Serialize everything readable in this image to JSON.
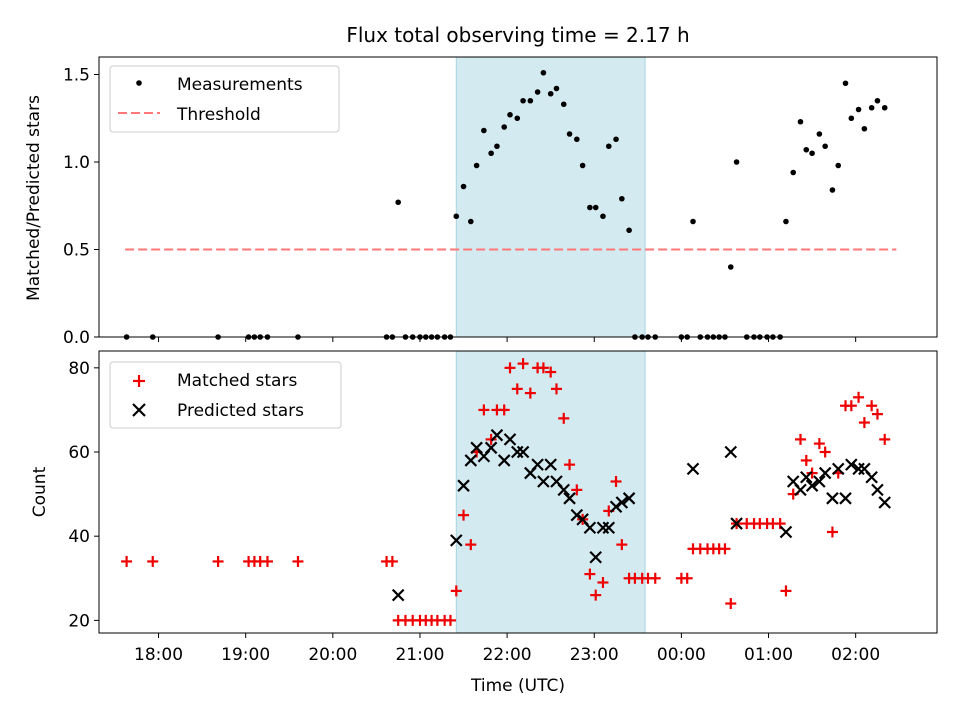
{
  "title": "Flux total observing time = 2.17 h",
  "colors": {
    "measurement": "#000000",
    "threshold": "#ff7777",
    "matched": "#ee0000",
    "predicted": "#000000",
    "shaded_window": "#d4eaf1"
  },
  "chart_data": [
    {
      "type": "scatter",
      "panel": "top",
      "ylabel": "Matched/Predicted stars",
      "ylim": [
        0,
        1.6
      ],
      "yticks": [
        0.0,
        0.5,
        1.0,
        1.5
      ],
      "ytick_labels": [
        "0.0",
        "0.5",
        "1.0",
        "1.5"
      ],
      "xlim": [
        "17:19",
        "02:56"
      ],
      "legend": {
        "position": "top-left",
        "entries": [
          "Measurements",
          "Threshold"
        ]
      },
      "shaded_window": {
        "start": "21:25",
        "end": "23:35"
      },
      "threshold": {
        "name": "Threshold",
        "value": 0.5,
        "x_start": "17:37",
        "x_end": "02:28"
      },
      "series": [
        {
          "name": "Measurements",
          "marker": "dot",
          "points": [
            [
              "17:38",
              0
            ],
            [
              "17:56",
              0
            ],
            [
              "18:41",
              0
            ],
            [
              "19:02",
              0
            ],
            [
              "19:06",
              0
            ],
            [
              "19:10",
              0
            ],
            [
              "19:15",
              0
            ],
            [
              "19:36",
              0
            ],
            [
              "20:37",
              0
            ],
            [
              "20:41",
              0
            ],
            [
              "20:45",
              0.77
            ],
            [
              "20:50",
              0
            ],
            [
              "20:55",
              0
            ],
            [
              "21:00",
              0
            ],
            [
              "21:04",
              0
            ],
            [
              "21:08",
              0
            ],
            [
              "21:12",
              0
            ],
            [
              "21:17",
              0
            ],
            [
              "21:21",
              0
            ],
            [
              "21:25",
              0.69
            ],
            [
              "21:30",
              0.86
            ],
            [
              "21:35",
              0.66
            ],
            [
              "21:39",
              0.98
            ],
            [
              "21:44",
              1.18
            ],
            [
              "21:49",
              1.05
            ],
            [
              "21:53",
              1.09
            ],
            [
              "21:58",
              1.2
            ],
            [
              "22:02",
              1.27
            ],
            [
              "22:07",
              1.25
            ],
            [
              "22:11",
              1.35
            ],
            [
              "22:16",
              1.35
            ],
            [
              "22:21",
              1.4
            ],
            [
              "22:25",
              1.51
            ],
            [
              "22:30",
              1.39
            ],
            [
              "22:34",
              1.42
            ],
            [
              "22:39",
              1.33
            ],
            [
              "22:43",
              1.16
            ],
            [
              "22:48",
              1.13
            ],
            [
              "22:52",
              0.98
            ],
            [
              "22:57",
              0.74
            ],
            [
              "23:01",
              0.74
            ],
            [
              "23:06",
              0.69
            ],
            [
              "23:10",
              1.09
            ],
            [
              "23:15",
              1.13
            ],
            [
              "23:19",
              0.79
            ],
            [
              "23:24",
              0.61
            ],
            [
              "23:28",
              0
            ],
            [
              "23:33",
              0
            ],
            [
              "23:37",
              0
            ],
            [
              "23:42",
              0
            ],
            [
              "00:00",
              0
            ],
            [
              "00:04",
              0
            ],
            [
              "00:08",
              0.66
            ],
            [
              "00:13",
              0
            ],
            [
              "00:18",
              0
            ],
            [
              "00:22",
              0
            ],
            [
              "00:26",
              0
            ],
            [
              "00:30",
              0
            ],
            [
              "00:34",
              0.4
            ],
            [
              "00:38",
              1.0
            ],
            [
              "00:45",
              0
            ],
            [
              "00:50",
              0
            ],
            [
              "00:54",
              0
            ],
            [
              "00:59",
              0
            ],
            [
              "01:03",
              0
            ],
            [
              "01:08",
              0
            ],
            [
              "01:12",
              0.66
            ],
            [
              "01:17",
              0.94
            ],
            [
              "01:22",
              1.23
            ],
            [
              "01:26",
              1.07
            ],
            [
              "01:30",
              1.05
            ],
            [
              "01:35",
              1.16
            ],
            [
              "01:39",
              1.09
            ],
            [
              "01:44",
              0.84
            ],
            [
              "01:48",
              0.98
            ],
            [
              "01:53",
              1.45
            ],
            [
              "01:57",
              1.25
            ],
            [
              "02:02",
              1.3
            ],
            [
              "02:06",
              1.19
            ],
            [
              "02:11",
              1.31
            ],
            [
              "02:15",
              1.35
            ],
            [
              "02:20",
              1.31
            ]
          ]
        }
      ]
    },
    {
      "type": "scatter",
      "panel": "bottom",
      "ylabel": "Count",
      "xlabel": "Time (UTC)",
      "ylim": [
        17,
        84
      ],
      "yticks": [
        20,
        40,
        60,
        80
      ],
      "ytick_labels": [
        "20",
        "40",
        "60",
        "80"
      ],
      "xlim": [
        "17:19",
        "02:56"
      ],
      "xticks": [
        "18:00",
        "19:00",
        "20:00",
        "21:00",
        "22:00",
        "23:00",
        "00:00",
        "01:00",
        "02:00"
      ],
      "xtick_labels": [
        "18:00",
        "19:00",
        "20:00",
        "21:00",
        "22:00",
        "23:00",
        "00:00",
        "01:00",
        "02:00"
      ],
      "legend": {
        "position": "top-left",
        "entries": [
          "Matched stars",
          "Predicted stars"
        ]
      },
      "shaded_window": {
        "start": "21:25",
        "end": "23:35"
      },
      "series": [
        {
          "name": "Matched stars",
          "marker": "plus",
          "points": [
            [
              "17:38",
              34
            ],
            [
              "17:56",
              34
            ],
            [
              "18:41",
              34
            ],
            [
              "19:02",
              34
            ],
            [
              "19:06",
              34
            ],
            [
              "19:10",
              34
            ],
            [
              "19:15",
              34
            ],
            [
              "19:36",
              34
            ],
            [
              "20:37",
              34
            ],
            [
              "20:41",
              34
            ],
            [
              "20:45",
              20
            ],
            [
              "20:50",
              20
            ],
            [
              "20:55",
              20
            ],
            [
              "21:00",
              20
            ],
            [
              "21:04",
              20
            ],
            [
              "21:08",
              20
            ],
            [
              "21:12",
              20
            ],
            [
              "21:17",
              20
            ],
            [
              "21:21",
              20
            ],
            [
              "21:25",
              27
            ],
            [
              "21:30",
              45
            ],
            [
              "21:35",
              38
            ],
            [
              "21:39",
              60
            ],
            [
              "21:44",
              70
            ],
            [
              "21:49",
              63
            ],
            [
              "21:53",
              70
            ],
            [
              "21:58",
              70
            ],
            [
              "22:02",
              80
            ],
            [
              "22:07",
              75
            ],
            [
              "22:11",
              81
            ],
            [
              "22:16",
              74
            ],
            [
              "22:21",
              80
            ],
            [
              "22:25",
              80
            ],
            [
              "22:30",
              79
            ],
            [
              "22:34",
              75
            ],
            [
              "22:39",
              68
            ],
            [
              "22:43",
              57
            ],
            [
              "22:48",
              51
            ],
            [
              "22:52",
              44
            ],
            [
              "22:57",
              31
            ],
            [
              "23:01",
              26
            ],
            [
              "23:06",
              29
            ],
            [
              "23:10",
              46
            ],
            [
              "23:15",
              53
            ],
            [
              "23:19",
              38
            ],
            [
              "23:24",
              30
            ],
            [
              "23:28",
              30
            ],
            [
              "23:33",
              30
            ],
            [
              "23:37",
              30
            ],
            [
              "23:42",
              30
            ],
            [
              "00:00",
              30
            ],
            [
              "00:04",
              30
            ],
            [
              "00:08",
              37
            ],
            [
              "00:13",
              37
            ],
            [
              "00:18",
              37
            ],
            [
              "00:22",
              37
            ],
            [
              "00:26",
              37
            ],
            [
              "00:30",
              37
            ],
            [
              "00:34",
              24
            ],
            [
              "00:38",
              43
            ],
            [
              "00:45",
              43
            ],
            [
              "00:50",
              43
            ],
            [
              "00:54",
              43
            ],
            [
              "00:59",
              43
            ],
            [
              "01:03",
              43
            ],
            [
              "01:08",
              43
            ],
            [
              "01:12",
              27
            ],
            [
              "01:17",
              50
            ],
            [
              "01:22",
              63
            ],
            [
              "01:26",
              58
            ],
            [
              "01:30",
              55
            ],
            [
              "01:35",
              62
            ],
            [
              "01:39",
              60
            ],
            [
              "01:44",
              41
            ],
            [
              "01:48",
              55
            ],
            [
              "01:53",
              71
            ],
            [
              "01:57",
              71
            ],
            [
              "02:02",
              73
            ],
            [
              "02:06",
              67
            ],
            [
              "02:11",
              71
            ],
            [
              "02:15",
              69
            ],
            [
              "02:20",
              63
            ]
          ]
        },
        {
          "name": "Predicted stars",
          "marker": "x",
          "points": [
            [
              "20:45",
              26
            ],
            [
              "21:25",
              39
            ],
            [
              "21:30",
              52
            ],
            [
              "21:35",
              58
            ],
            [
              "21:39",
              61
            ],
            [
              "21:44",
              59
            ],
            [
              "21:49",
              61
            ],
            [
              "21:53",
              64
            ],
            [
              "21:58",
              58
            ],
            [
              "22:02",
              63
            ],
            [
              "22:07",
              60
            ],
            [
              "22:11",
              60
            ],
            [
              "22:16",
              55
            ],
            [
              "22:21",
              57
            ],
            [
              "22:25",
              53
            ],
            [
              "22:30",
              57
            ],
            [
              "22:34",
              53
            ],
            [
              "22:39",
              51
            ],
            [
              "22:43",
              49
            ],
            [
              "22:48",
              45
            ],
            [
              "22:52",
              44
            ],
            [
              "22:57",
              42
            ],
            [
              "23:01",
              35
            ],
            [
              "23:06",
              42
            ],
            [
              "23:10",
              42
            ],
            [
              "23:15",
              47
            ],
            [
              "23:19",
              48
            ],
            [
              "23:24",
              49
            ],
            [
              "00:08",
              56
            ],
            [
              "00:34",
              60
            ],
            [
              "00:38",
              43
            ],
            [
              "01:12",
              41
            ],
            [
              "01:17",
              53
            ],
            [
              "01:22",
              51
            ],
            [
              "01:26",
              54
            ],
            [
              "01:30",
              52
            ],
            [
              "01:35",
              53
            ],
            [
              "01:39",
              55
            ],
            [
              "01:44",
              49
            ],
            [
              "01:48",
              56
            ],
            [
              "01:53",
              49
            ],
            [
              "01:57",
              57
            ],
            [
              "02:02",
              56
            ],
            [
              "02:06",
              56
            ],
            [
              "02:11",
              54
            ],
            [
              "02:15",
              51
            ],
            [
              "02:20",
              48
            ]
          ]
        }
      ]
    }
  ]
}
